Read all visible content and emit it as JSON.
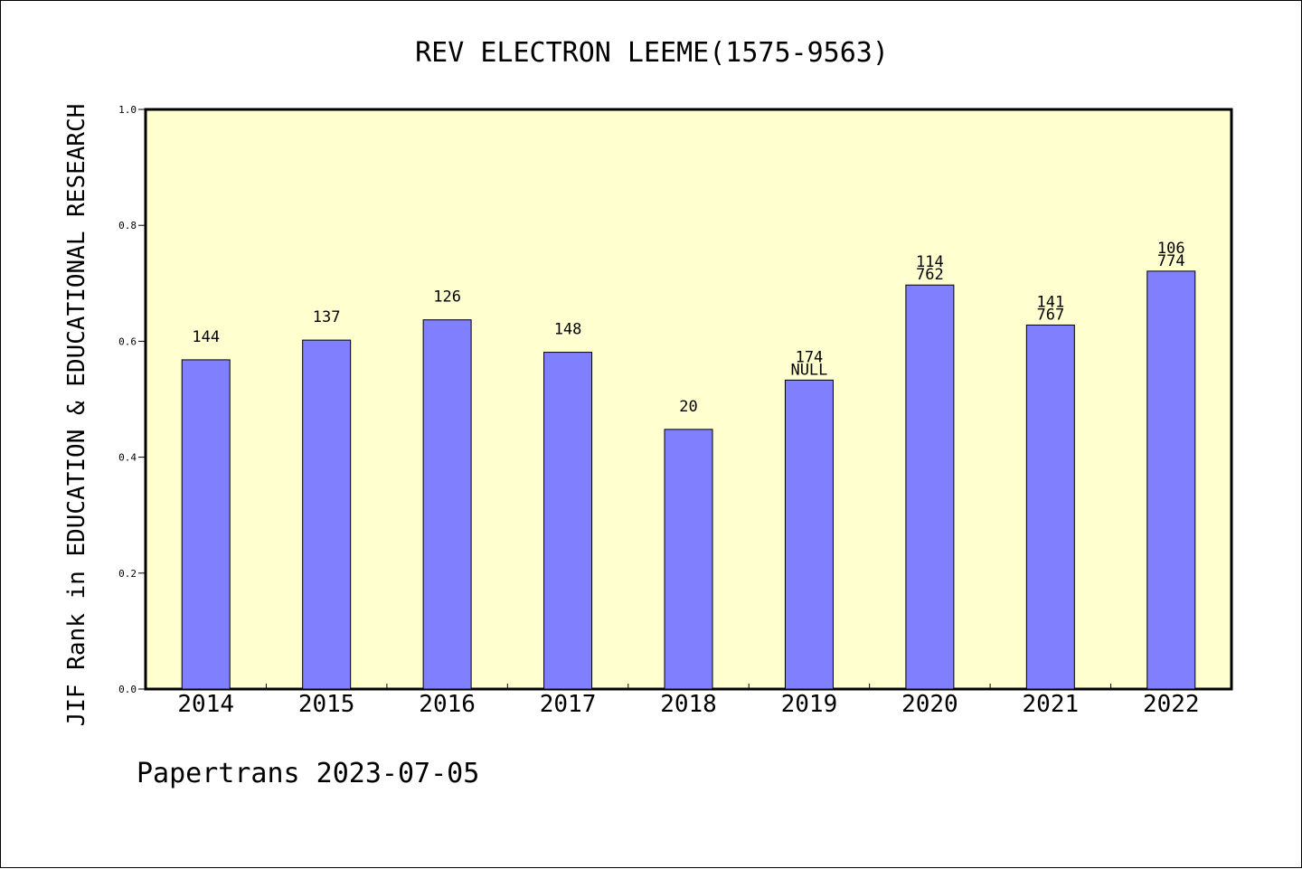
{
  "chart_data": {
    "type": "bar",
    "title": "REV ELECTRON LEEME(1575-9563)",
    "ylabel": "JIF Rank in EDUCATION & EDUCATIONAL RESEARCH",
    "xlabel": "",
    "categories": [
      "2014",
      "2015",
      "2016",
      "2017",
      "2018",
      "2019",
      "2020",
      "2021",
      "2022"
    ],
    "values": [
      0.568,
      0.602,
      0.637,
      0.581,
      0.448,
      0.533,
      0.697,
      0.628,
      0.721
    ],
    "bar_labels": [
      [
        "144"
      ],
      [
        "137"
      ],
      [
        "126"
      ],
      [
        "148"
      ],
      [
        "20"
      ],
      [
        "174",
        "NULL"
      ],
      [
        "114",
        "762"
      ],
      [
        "141",
        "767"
      ],
      [
        "106",
        "774"
      ]
    ],
    "yticks": [
      "0.0",
      "0.2",
      "0.4",
      "0.6",
      "0.8",
      "1.0"
    ],
    "ylim": [
      0,
      1.0
    ],
    "grid": false,
    "colors": {
      "plot_background": "#ffffd0",
      "bar_fill": "#8080ff",
      "bar_edge": "#000000"
    }
  },
  "footer": "Papertrans 2023-07-05"
}
